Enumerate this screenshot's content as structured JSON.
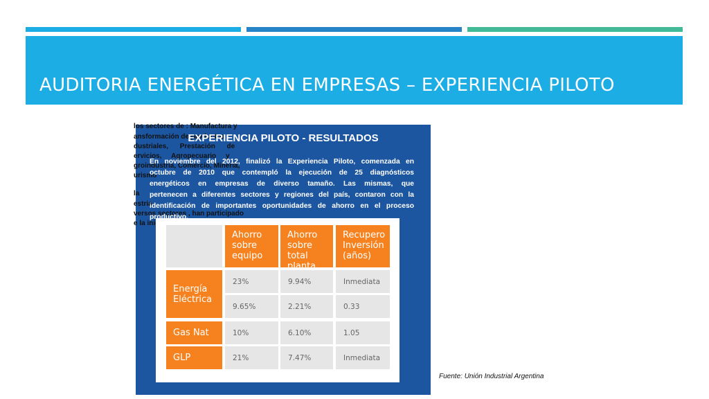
{
  "header": {
    "title": "AUDITORIA ENERGÉTICA EN EMPRESAS – EXPERIENCIA PILOTO"
  },
  "background_text": {
    "lines": [
      "los sectores de : Manufactura y",
      "ansformación de productos",
      "dustriales,      Prestación      de",
      "ervicios,     Agropecuario     y",
      "groindustria, Comercio, Minería,",
      "urismo",
      "la",
      "estria",
      "versos sectores , han participado",
      "e la iniciativa."
    ]
  },
  "panel": {
    "title": "EXPERIENCIA PILOTO - RESULTADOS",
    "paragraph": [
      "En noviembre del 2012, finalizó la Experiencia Piloto, comenzada en",
      "octubre de 2010 que contempló la ejecución de 25 diagnósticos",
      "energéticos en empresas de diverso tamaño. Las mismas, que",
      "pertenecen a diferentes sectores y regiones del país, contaron con la",
      "identificación de importantes oportunidades de ahorro en el proceso",
      "productivo."
    ]
  },
  "table": {
    "columns": [
      [
        "Ahorro",
        "sobre",
        "equipo"
      ],
      [
        "Ahorro",
        "sobre total",
        "planta"
      ],
      [
        "Recupero",
        "Inversión",
        "(años)"
      ]
    ],
    "groups": [
      {
        "label": [
          "Energía",
          "Eléctrica"
        ],
        "rows": [
          [
            "23%",
            "9.94%",
            "Inmediata"
          ],
          [
            "9.65%",
            "2.21%",
            "0.33"
          ]
        ]
      },
      {
        "label": [
          "Gas Nat"
        ],
        "rows": [
          [
            "10%",
            "6.10%",
            "1.05"
          ]
        ]
      },
      {
        "label": [
          "GLP"
        ],
        "rows": [
          [
            "21%",
            "7.47%",
            "Inmediata"
          ]
        ]
      }
    ]
  },
  "source": "Fuente: Unión Industrial Argentina"
}
